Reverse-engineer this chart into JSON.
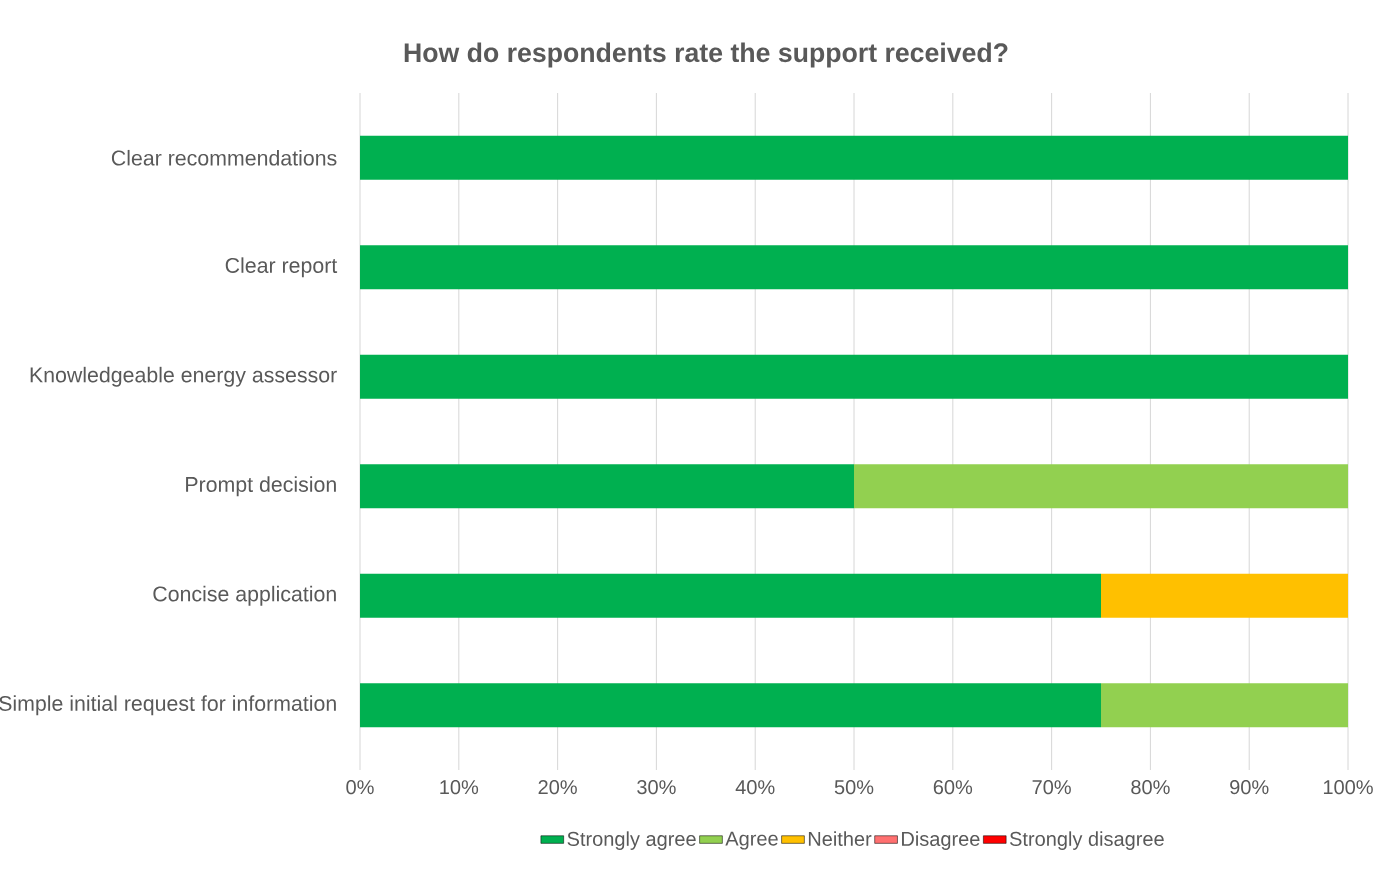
{
  "chart_data": {
    "type": "bar",
    "orientation": "horizontal",
    "stacked": true,
    "title": "How do respondents rate the support received?",
    "categories": [
      "Clear recommendations",
      "Clear report",
      "Knowledgeable energy assessor",
      "Prompt decision",
      "Concise application",
      "Simple initial request for information"
    ],
    "series": [
      {
        "name": "Strongly agree",
        "color": "#00b050",
        "values": [
          100,
          100,
          100,
          50,
          75,
          75
        ]
      },
      {
        "name": "Agree",
        "color": "#92d050",
        "values": [
          0,
          0,
          0,
          50,
          0,
          25
        ]
      },
      {
        "name": "Neither",
        "color": "#ffc000",
        "values": [
          0,
          0,
          0,
          0,
          25,
          0
        ]
      },
      {
        "name": "Disagree",
        "color": "#ff7070",
        "values": [
          0,
          0,
          0,
          0,
          0,
          0
        ]
      },
      {
        "name": "Strongly disagree",
        "color": "#ff0000",
        "values": [
          0,
          0,
          0,
          0,
          0,
          0
        ]
      }
    ],
    "xlim": [
      0,
      100
    ],
    "xticks": [
      {
        "value": 0,
        "label": "0%"
      },
      {
        "value": 10,
        "label": "10%"
      },
      {
        "value": 20,
        "label": "20%"
      },
      {
        "value": 30,
        "label": "30%"
      },
      {
        "value": 40,
        "label": "40%"
      },
      {
        "value": 50,
        "label": "50%"
      },
      {
        "value": 60,
        "label": "60%"
      },
      {
        "value": 70,
        "label": "70%"
      },
      {
        "value": 80,
        "label": "80%"
      },
      {
        "value": 90,
        "label": "90%"
      },
      {
        "value": 100,
        "label": "100%"
      }
    ],
    "grid": "x",
    "legend": "bottom"
  }
}
